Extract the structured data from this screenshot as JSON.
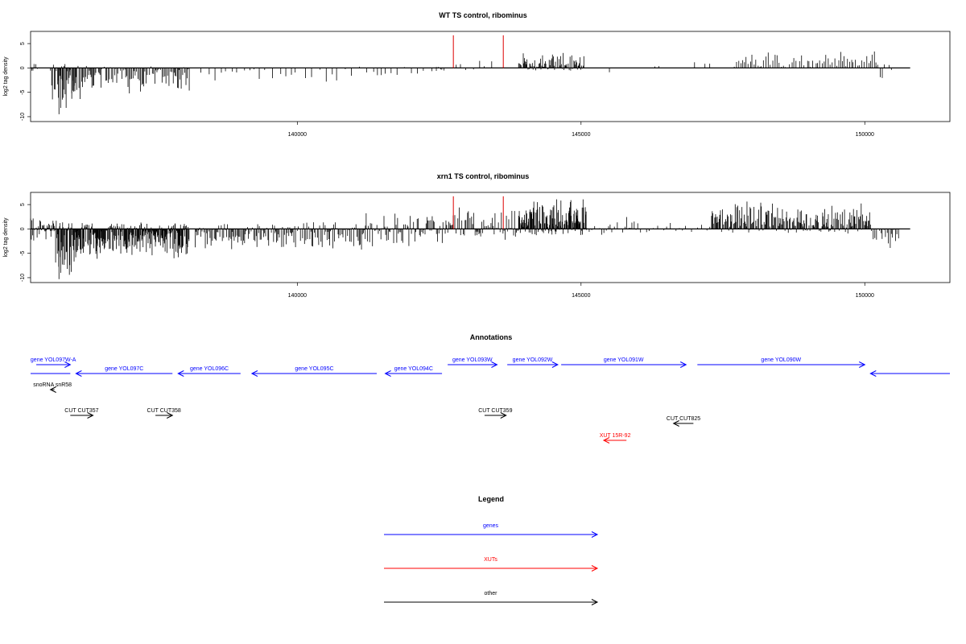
{
  "chart_data": [
    {
      "type": "bar",
      "title": "WT TS control, ribominus",
      "xlabel": "",
      "ylabel": "log2 tag density",
      "xlim": [
        135300,
        151500
      ],
      "ylim": [
        -11,
        7.5
      ],
      "x_ticks": [
        140000,
        145000,
        150000
      ],
      "x_tick_labels": [
        "140000",
        "145000",
        "150000"
      ],
      "y_ticks": [
        5,
        0,
        -5,
        -10
      ],
      "y_tick_labels": [
        "5",
        "0",
        "-5",
        "-10"
      ],
      "baseline_span": [
        135300,
        150800
      ],
      "highlights": [
        {
          "x": 142750,
          "value": 6.7
        },
        {
          "x": 143630,
          "value": 6.7
        }
      ],
      "highlight_color": "#dd0000",
      "segments": [
        {
          "from": 135320,
          "to": 135420,
          "min": -3,
          "max": 2,
          "every": 25
        },
        {
          "from": 135650,
          "to": 136180,
          "min": -10,
          "max": 1.5,
          "every": 18
        },
        {
          "from": 135780,
          "to": 136120,
          "min": -7,
          "max": 2,
          "every": 22
        },
        {
          "from": 136200,
          "to": 138100,
          "min": -5.5,
          "max": 0.5,
          "every": 20
        },
        {
          "from": 138300,
          "to": 142500,
          "min": -3,
          "max": 0.3,
          "every": 110
        },
        {
          "from": 142450,
          "to": 142600,
          "min": -3,
          "max": 1,
          "every": 30
        },
        {
          "from": 142800,
          "to": 143500,
          "min": -1,
          "max": 2.5,
          "every": 110
        },
        {
          "from": 143900,
          "to": 145050,
          "min": -1,
          "max": 3.5,
          "every": 14
        },
        {
          "from": 145500,
          "to": 145700,
          "min": -2.5,
          "max": 0,
          "every": 200
        },
        {
          "from": 146300,
          "to": 146400,
          "min": 0,
          "max": 1,
          "every": 100
        },
        {
          "from": 147000,
          "to": 147300,
          "min": 0,
          "max": 1.5,
          "every": 100
        },
        {
          "from": 147700,
          "to": 150200,
          "min": 0,
          "max": 4,
          "every": 35
        },
        {
          "from": 150200,
          "to": 150500,
          "min": -2.5,
          "max": 1,
          "every": 40
        }
      ]
    },
    {
      "type": "bar",
      "title": "xrn1 TS control, ribominus",
      "xlabel": "",
      "ylabel": "log2 tag density",
      "xlim": [
        135300,
        151500
      ],
      "ylim": [
        -11,
        7.5
      ],
      "x_ticks": [
        140000,
        145000,
        150000
      ],
      "x_tick_labels": [
        "140000",
        "145000",
        "150000"
      ],
      "y_ticks": [
        5,
        0,
        -5,
        -10
      ],
      "y_tick_labels": [
        "5",
        "0",
        "-5",
        "-10"
      ],
      "baseline_span": [
        135300,
        150800
      ],
      "highlights": [
        {
          "x": 142750,
          "value": 6.7
        },
        {
          "x": 143630,
          "value": 6.7
        }
      ],
      "highlight_color": "#dd0000",
      "segments": [
        {
          "from": 135300,
          "to": 135700,
          "min": -4,
          "max": 3,
          "every": 12
        },
        {
          "from": 135700,
          "to": 136200,
          "min": -10.5,
          "max": 3,
          "every": 8
        },
        {
          "from": 136200,
          "to": 138100,
          "min": -6.5,
          "max": 1.5,
          "every": 8
        },
        {
          "from": 138200,
          "to": 141200,
          "min": -4.5,
          "max": 1.5,
          "every": 18
        },
        {
          "from": 141200,
          "to": 142700,
          "min": -4,
          "max": 4,
          "every": 18
        },
        {
          "from": 142700,
          "to": 143900,
          "min": -2.5,
          "max": 5,
          "every": 22
        },
        {
          "from": 143900,
          "to": 145100,
          "min": -1.5,
          "max": 6.5,
          "every": 8
        },
        {
          "from": 145100,
          "to": 146200,
          "min": -2,
          "max": 2.5,
          "every": 40
        },
        {
          "from": 146200,
          "to": 147300,
          "min": -1,
          "max": 1.5,
          "every": 80
        },
        {
          "from": 147300,
          "to": 150100,
          "min": -1,
          "max": 6,
          "every": 14
        },
        {
          "from": 150100,
          "to": 150600,
          "min": -4.5,
          "max": 2,
          "every": 25
        }
      ]
    }
  ],
  "annotations": {
    "title": "Annotations",
    "xlim": [
      135300,
      151500
    ],
    "items": [
      {
        "label": "gene YOL097W-A",
        "from": 135400,
        "to": 136000,
        "strand": "+",
        "row": 1,
        "type": "gene"
      },
      {
        "label": "gene YOL097C",
        "from": 136100,
        "to": 137800,
        "strand": "-",
        "row": 2,
        "type": "gene"
      },
      {
        "label": "gene YOL096C",
        "from": 137900,
        "to": 139000,
        "strand": "-",
        "row": 2,
        "type": "gene"
      },
      {
        "label": "gene YOL095C",
        "from": 139200,
        "to": 141400,
        "strand": "-",
        "row": 2,
        "type": "gene"
      },
      {
        "label": "gene YOL094C",
        "from": 141550,
        "to": 142550,
        "strand": "-",
        "row": 2,
        "type": "gene"
      },
      {
        "label": "gene YOL093W",
        "from": 142650,
        "to": 143520,
        "strand": "+",
        "row": 1,
        "type": "gene"
      },
      {
        "label": "gene YOL092W",
        "from": 143700,
        "to": 144590,
        "strand": "+",
        "row": 1,
        "type": "gene"
      },
      {
        "label": "gene YOL091W",
        "from": 144650,
        "to": 146850,
        "strand": "+",
        "row": 1,
        "type": "gene"
      },
      {
        "label": "gene YOL090W",
        "from": 147050,
        "to": 150000,
        "strand": "+",
        "row": 1,
        "type": "gene"
      },
      {
        "label": "",
        "from": 135300,
        "to": 136000,
        "strand": "none",
        "row": 2,
        "type": "gene"
      },
      {
        "label": "",
        "from": 150100,
        "to": 151500,
        "strand": "-",
        "row": 2,
        "type": "gene"
      },
      {
        "label": "snoRNA snR58",
        "from": 135650,
        "to": 135720,
        "strand": "-",
        "row": 3,
        "type": "other"
      },
      {
        "label": "CUT CUT357",
        "from": 136000,
        "to": 136400,
        "strand": "+",
        "row": 4,
        "type": "other"
      },
      {
        "label": "CUT CUT358",
        "from": 137500,
        "to": 137800,
        "strand": "+",
        "row": 4,
        "type": "other"
      },
      {
        "label": "CUT CUT359",
        "from": 143300,
        "to": 143680,
        "strand": "+",
        "row": 4,
        "type": "other"
      },
      {
        "label": "CUT CUT825",
        "from": 146630,
        "to": 146980,
        "strand": "-",
        "row": 5,
        "type": "other"
      },
      {
        "label": "XUT 15R-92",
        "from": 145400,
        "to": 145800,
        "strand": "-",
        "row": 6,
        "type": "xut"
      }
    ]
  },
  "legend": {
    "title": "Legend",
    "entries": [
      {
        "label": "genes",
        "color": "#0000ff"
      },
      {
        "label": "XUTs",
        "color": "#ff0000"
      },
      {
        "label": "other",
        "color": "#000000"
      }
    ]
  },
  "colors": {
    "gene": "#0000ff",
    "xut": "#ff0000",
    "other": "#000000",
    "bar": "#000000",
    "axis": "#000000"
  }
}
